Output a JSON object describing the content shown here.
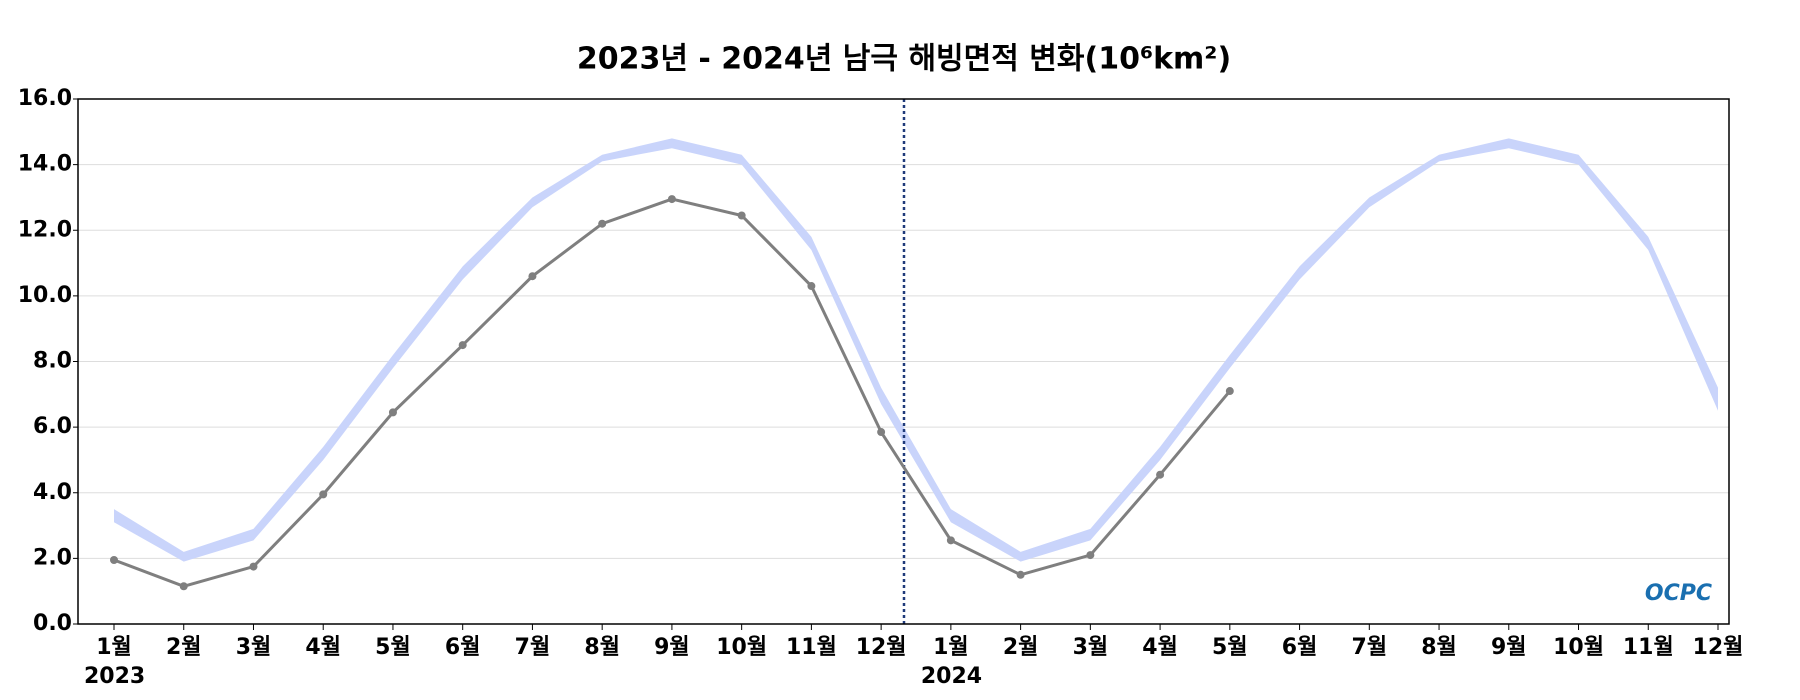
{
  "chart_data": {
    "type": "line",
    "title": "2023년 - 2024년 남극 해빙면적 변화(10⁶km²)",
    "categories": [
      "1월",
      "2월",
      "3월",
      "4월",
      "5월",
      "6월",
      "7월",
      "8월",
      "9월",
      "10월",
      "11월",
      "12월",
      "1월",
      "2월",
      "3월",
      "4월",
      "5월",
      "6월",
      "7월",
      "8월",
      "9월",
      "10월",
      "11월",
      "12월"
    ],
    "year_labels": [
      "2023",
      "2024"
    ],
    "series": [
      {
        "color": "#7f7f7f",
        "values": [
          1.95,
          1.15,
          1.75,
          3.95,
          6.45,
          8.5,
          10.6,
          12.2,
          12.95,
          12.45,
          10.3,
          5.85,
          2.55,
          1.5,
          2.1,
          4.55,
          7.1,
          null,
          null,
          null,
          null,
          null,
          null,
          null
        ]
      }
    ],
    "band": {
      "color": "#c9d4fb",
      "upper": [
        3.5,
        2.2,
        2.9,
        5.4,
        8.2,
        10.9,
        13.0,
        14.3,
        14.8,
        14.3,
        11.8,
        7.2,
        3.5,
        2.2,
        2.9,
        5.4,
        8.2,
        10.9,
        13.0,
        14.3,
        14.8,
        14.3,
        11.8,
        7.2
      ],
      "lower": [
        3.1,
        1.9,
        2.55,
        5.0,
        7.8,
        10.5,
        12.7,
        14.1,
        14.5,
        14.0,
        11.4,
        6.7,
        3.1,
        1.9,
        2.55,
        5.0,
        7.8,
        10.5,
        12.7,
        14.1,
        14.5,
        14.0,
        11.4,
        6.5
      ]
    },
    "ylim": [
      0,
      16
    ],
    "yticks": [
      {
        "value": 0,
        "label": "0.0"
      },
      {
        "value": 2,
        "label": "2.0"
      },
      {
        "value": 4,
        "label": "4.0"
      },
      {
        "value": 6,
        "label": "6.0"
      },
      {
        "value": 8,
        "label": "8.0"
      },
      {
        "value": 10,
        "label": "10.0"
      },
      {
        "value": 12,
        "label": "12.0"
      },
      {
        "value": 14,
        "label": "14.0"
      },
      {
        "value": 16,
        "label": "16.0"
      }
    ],
    "grid": true,
    "logo": "OCPC"
  }
}
